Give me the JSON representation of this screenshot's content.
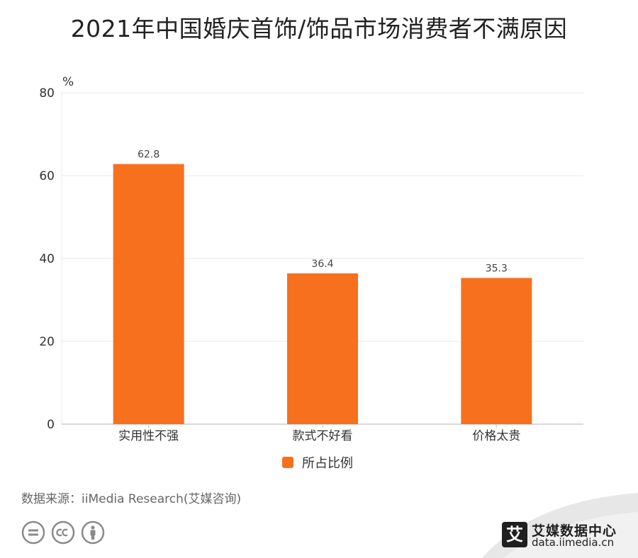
{
  "title": "2021年中国婚庆首饰/饰品市场消费者不满原因",
  "chart_data": {
    "type": "bar",
    "categories": [
      "实用性不强",
      "款式不好看",
      "价格太贵"
    ],
    "series": [
      {
        "name": "所占比例",
        "values": [
          62.8,
          36.4,
          35.3
        ]
      }
    ],
    "y_unit": "%",
    "ylim": [
      0,
      80
    ],
    "yticks": [
      0,
      20,
      40,
      60,
      80
    ],
    "grid": true,
    "legend": "bottom-center",
    "bar_color": "#F7701E"
  },
  "source": "数据来源：iiMedia Research(艾媒咨询)",
  "brand": {
    "logo_char": "艾",
    "name": "艾媒数据中心",
    "url": "data.iimedia.cn"
  },
  "license_icons": [
    "equals-icon",
    "cc-icon",
    "person-icon"
  ],
  "colors": {
    "bar": "#F7701E",
    "grid": "#e8e8e8",
    "axis": "#cccccc"
  }
}
